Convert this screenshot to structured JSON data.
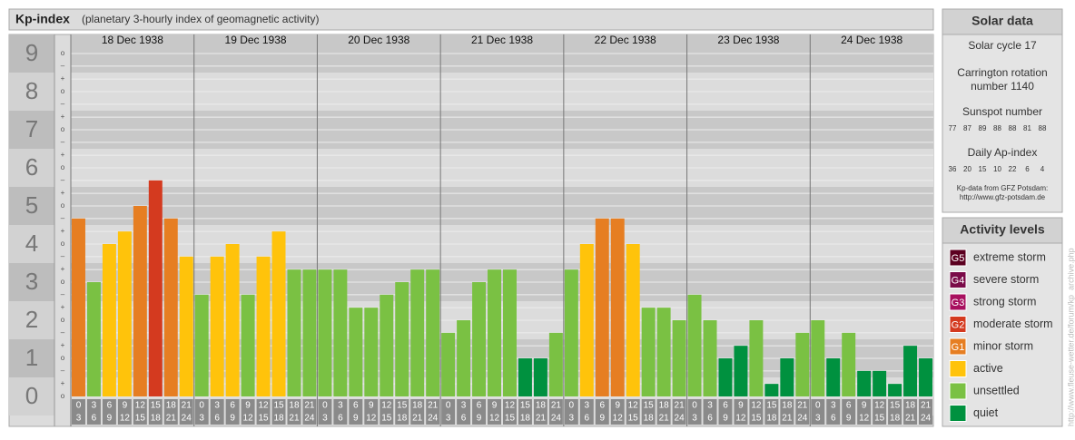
{
  "chart_data": {
    "type": "bar",
    "title": "Kp-index",
    "subtitle": "(planetary 3-hourly index of geomagnetic activity)",
    "ylim": [
      -0.5,
      9.5
    ],
    "yticks": [
      0,
      1,
      2,
      3,
      4,
      5,
      6,
      7,
      8,
      9
    ],
    "minor_ticks": [
      {
        "value": 0,
        "label": "o"
      },
      {
        "value": 0.33,
        "label": "+"
      },
      {
        "value": 0.67,
        "label": "–"
      },
      {
        "value": 1,
        "label": "o"
      },
      {
        "value": 1.33,
        "label": "+"
      },
      {
        "value": 1.67,
        "label": "–"
      },
      {
        "value": 2,
        "label": "o"
      },
      {
        "value": 2.33,
        "label": "+"
      },
      {
        "value": 2.67,
        "label": "–"
      },
      {
        "value": 3,
        "label": "o"
      },
      {
        "value": 3.33,
        "label": "+"
      },
      {
        "value": 3.67,
        "label": "–"
      },
      {
        "value": 4,
        "label": "o"
      },
      {
        "value": 4.33,
        "label": "+"
      },
      {
        "value": 4.67,
        "label": "–"
      },
      {
        "value": 5,
        "label": "o"
      },
      {
        "value": 5.33,
        "label": "+"
      },
      {
        "value": 5.67,
        "label": "–"
      },
      {
        "value": 6,
        "label": "o"
      },
      {
        "value": 6.33,
        "label": "+"
      },
      {
        "value": 6.67,
        "label": "–"
      },
      {
        "value": 7,
        "label": "o"
      },
      {
        "value": 7.33,
        "label": "+"
      },
      {
        "value": 7.67,
        "label": "–"
      },
      {
        "value": 8,
        "label": "o"
      },
      {
        "value": 8.33,
        "label": "+"
      },
      {
        "value": 8.67,
        "label": "–"
      },
      {
        "value": 9,
        "label": "o"
      }
    ],
    "hour_labels": [
      [
        "0",
        "3"
      ],
      [
        "3",
        "6"
      ],
      [
        "6",
        "9"
      ],
      [
        "9",
        "12"
      ],
      [
        "12",
        "15"
      ],
      [
        "15",
        "18"
      ],
      [
        "18",
        "21"
      ],
      [
        "21",
        "24"
      ]
    ],
    "days": [
      {
        "date": "18 Dec 1938",
        "values": [
          4.67,
          3,
          4,
          4.33,
          5,
          5.67,
          4.67,
          3.67
        ],
        "colors": [
          "#e67e22",
          "#7ac143",
          "#ffc30b",
          "#ffc30b",
          "#e67e22",
          "#d43a1f",
          "#e67e22",
          "#ffc30b"
        ]
      },
      {
        "date": "19 Dec 1938",
        "values": [
          2.67,
          3.67,
          4,
          2.67,
          3.67,
          4.33,
          3.33,
          3.33
        ],
        "colors": [
          "#7ac143",
          "#ffc30b",
          "#ffc30b",
          "#7ac143",
          "#ffc30b",
          "#ffc30b",
          "#7ac143",
          "#7ac143"
        ]
      },
      {
        "date": "20 Dec 1938",
        "values": [
          3.33,
          3.33,
          2.33,
          2.33,
          2.67,
          3,
          3.33,
          3.33
        ],
        "colors": [
          "#7ac143",
          "#7ac143",
          "#7ac143",
          "#7ac143",
          "#7ac143",
          "#7ac143",
          "#7ac143",
          "#7ac143"
        ]
      },
      {
        "date": "21 Dec 1938",
        "values": [
          1.67,
          2,
          3,
          3.33,
          3.33,
          1,
          1,
          1.67
        ],
        "colors": [
          "#7ac143",
          "#7ac143",
          "#7ac143",
          "#7ac143",
          "#7ac143",
          "#00913f",
          "#00913f",
          "#7ac143"
        ]
      },
      {
        "date": "22 Dec 1938",
        "values": [
          3.33,
          4,
          4.67,
          4.67,
          4,
          2.33,
          2.33,
          2
        ],
        "colors": [
          "#7ac143",
          "#ffc30b",
          "#e67e22",
          "#e67e22",
          "#ffc30b",
          "#7ac143",
          "#7ac143",
          "#7ac143"
        ]
      },
      {
        "date": "23 Dec 1938",
        "values": [
          2.67,
          2,
          1,
          1.33,
          2,
          0.33,
          1,
          1.67
        ],
        "colors": [
          "#7ac143",
          "#7ac143",
          "#00913f",
          "#00913f",
          "#7ac143",
          "#00913f",
          "#00913f",
          "#7ac143"
        ]
      },
      {
        "date": "24 Dec 1938",
        "values": [
          2,
          1,
          1.67,
          0.67,
          0.67,
          0.33,
          1.33,
          1
        ],
        "colors": [
          "#7ac143",
          "#00913f",
          "#7ac143",
          "#00913f",
          "#00913f",
          "#00913f",
          "#00913f",
          "#00913f"
        ]
      }
    ]
  },
  "solar_data": {
    "title": "Solar data",
    "cycle": "Solar cycle 17",
    "carrington": [
      "Carrington rotation",
      "number 1140"
    ],
    "sunspot_title": "Sunspot number",
    "sunspot": [
      77,
      87,
      89,
      88,
      88,
      81,
      88
    ],
    "ap_title": "Daily Ap-index",
    "ap": [
      36,
      20,
      15,
      10,
      22,
      6,
      4
    ],
    "source": [
      "Kp-data from GFZ Potsdam:",
      "http://www.gfz-potsdam.de"
    ]
  },
  "activity_levels": {
    "title": "Activity levels",
    "items": [
      {
        "badge": "G5",
        "label": "extreme storm",
        "color": "#5c0020"
      },
      {
        "badge": "G4",
        "label": "severe storm",
        "color": "#7a0a48"
      },
      {
        "badge": "G3",
        "label": "strong storm",
        "color": "#a8105f"
      },
      {
        "badge": "G2",
        "label": "moderate storm",
        "color": "#d43a1f"
      },
      {
        "badge": "G1",
        "label": "minor storm",
        "color": "#e67e22"
      },
      {
        "label": "active",
        "color": "#ffc30b"
      },
      {
        "label": "unsettled",
        "color": "#7ac143"
      },
      {
        "label": "quiet",
        "color": "#00913f"
      }
    ]
  },
  "watermark": "http://www.fleuse-wetter.de/forum/kp_archive.php"
}
